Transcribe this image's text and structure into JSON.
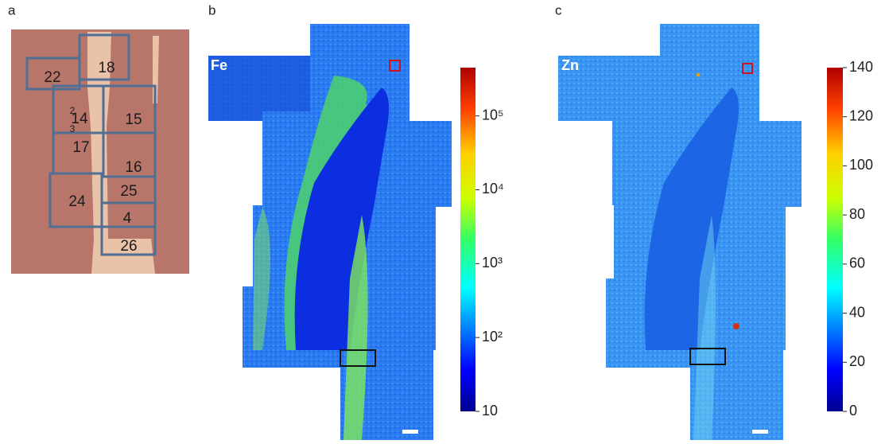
{
  "panels": [
    {
      "label": "a",
      "regions": [
        {
          "label": "22"
        },
        {
          "label": "18"
        },
        {
          "label": "14"
        },
        {
          "label": "15"
        },
        {
          "label": "2"
        },
        {
          "label": "3"
        },
        {
          "label": "17"
        },
        {
          "label": "16"
        },
        {
          "label": "24"
        },
        {
          "label": "25"
        },
        {
          "label": "4"
        },
        {
          "label": "26"
        }
      ]
    },
    {
      "label": "b",
      "element": "Fe",
      "colorbar": {
        "scale": "log",
        "lim": [
          10,
          450000
        ],
        "ticks": [
          10,
          {
            "value": 100,
            "label": "10²"
          },
          {
            "value": 1000,
            "label": "10³"
          },
          {
            "value": 10000,
            "label": "10⁴"
          },
          {
            "value": 100000,
            "label": "10⁵"
          }
        ]
      }
    },
    {
      "label": "c",
      "element": "Zn",
      "colorbar": {
        "scale": "linear",
        "lim": [
          0,
          140
        ],
        "ticks": [
          0,
          20,
          40,
          60,
          80,
          100,
          120,
          140
        ]
      }
    }
  ]
}
